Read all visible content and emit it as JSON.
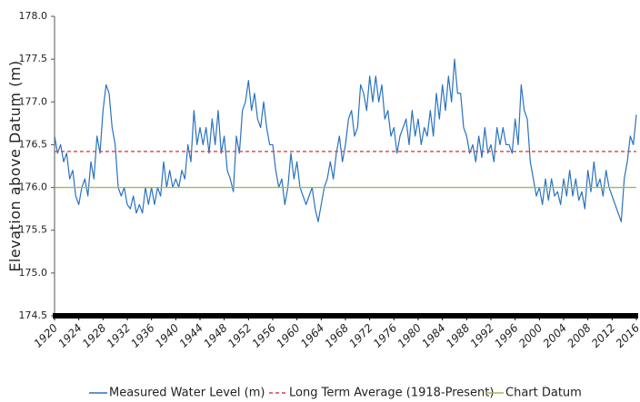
{
  "chart_data": {
    "type": "line",
    "y_label": "Elevation above Datum (m)",
    "xlim": [
      1920,
      2016
    ],
    "xticks": [
      1920,
      1924,
      1928,
      1932,
      1936,
      1940,
      1944,
      1948,
      1952,
      1956,
      1960,
      1964,
      1968,
      1972,
      1976,
      1980,
      1984,
      1988,
      1992,
      1996,
      2000,
      2004,
      2008,
      2012,
      2016
    ],
    "ylim": [
      174.5,
      178.0
    ],
    "yticks": [
      174.5,
      {
        "value": 175,
        "label": "175.0"
      },
      175.5,
      {
        "value": 176,
        "label": "176.0"
      },
      176.5,
      {
        "value": 177,
        "label": "177.0"
      },
      177.5,
      {
        "value": 178,
        "label": "178.0"
      }
    ],
    "grid": false,
    "legend": "bottom",
    "series": [
      {
        "name": "Measured Water Level (m)",
        "color": "#2a72bf",
        "style": "solid",
        "x": [
          1920,
          1920.5,
          1921,
          1921.5,
          1922,
          1922.5,
          1923,
          1923.5,
          1924,
          1924.5,
          1925,
          1925.5,
          1926,
          1926.5,
          1927,
          1927.5,
          1928,
          1928.5,
          1929,
          1929.5,
          1930,
          1930.5,
          1931,
          1931.5,
          1932,
          1932.5,
          1933,
          1933.5,
          1934,
          1934.5,
          1935,
          1935.5,
          1936,
          1936.5,
          1937,
          1937.5,
          1938,
          1938.5,
          1939,
          1939.5,
          1940,
          1940.5,
          1941,
          1941.5,
          1942,
          1942.5,
          1943,
          1943.5,
          1944,
          1944.5,
          1945,
          1945.5,
          1946,
          1946.5,
          1947,
          1947.5,
          1948,
          1948.5,
          1949,
          1949.5,
          1950,
          1950.5,
          1951,
          1951.5,
          1952,
          1952.5,
          1953,
          1953.5,
          1954,
          1954.5,
          1955,
          1955.5,
          1956,
          1956.5,
          1957,
          1957.5,
          1958,
          1958.5,
          1959,
          1959.5,
          1960,
          1960.5,
          1961,
          1961.5,
          1962,
          1962.5,
          1963,
          1963.5,
          1964,
          1964.5,
          1965,
          1965.5,
          1966,
          1966.5,
          1967,
          1967.5,
          1968,
          1968.5,
          1969,
          1969.5,
          1970,
          1970.5,
          1971,
          1971.5,
          1972,
          1972.5,
          1973,
          1973.5,
          1974,
          1974.5,
          1975,
          1975.5,
          1976,
          1976.5,
          1977,
          1977.5,
          1978,
          1978.5,
          1979,
          1979.5,
          1980,
          1980.5,
          1981,
          1981.5,
          1982,
          1982.5,
          1983,
          1983.5,
          1984,
          1984.5,
          1985,
          1985.5,
          1986,
          1986.5,
          1987,
          1987.5,
          1988,
          1988.5,
          1989,
          1989.5,
          1990,
          1990.5,
          1991,
          1991.5,
          1992,
          1992.5,
          1993,
          1993.5,
          1994,
          1994.5,
          1995,
          1995.5,
          1996,
          1996.5,
          1997,
          1997.5,
          1998,
          1998.5,
          1999,
          1999.5,
          2000,
          2000.5,
          2001,
          2001.5,
          2002,
          2002.5,
          2003,
          2003.5,
          2004,
          2004.5,
          2005,
          2005.5,
          2006,
          2006.5,
          2007,
          2007.5,
          2008,
          2008.5,
          2009,
          2009.5,
          2010,
          2010.5,
          2011,
          2011.5,
          2012,
          2012.5,
          2013,
          2013.5,
          2014,
          2014.5,
          2015,
          2015.5,
          2016
        ],
        "values": [
          176.6,
          176.4,
          176.5,
          176.3,
          176.4,
          176.1,
          176.2,
          175.9,
          175.8,
          176.0,
          176.1,
          175.9,
          176.3,
          176.1,
          176.6,
          176.4,
          176.9,
          177.2,
          177.1,
          176.7,
          176.5,
          176.0,
          175.9,
          176.0,
          175.8,
          175.75,
          175.9,
          175.7,
          175.8,
          175.7,
          176.0,
          175.8,
          176.0,
          175.8,
          176.0,
          175.9,
          176.3,
          176.0,
          176.2,
          176.0,
          176.1,
          176.0,
          176.2,
          176.1,
          176.5,
          176.3,
          176.9,
          176.5,
          176.7,
          176.5,
          176.7,
          176.4,
          176.8,
          176.5,
          176.9,
          176.4,
          176.6,
          176.2,
          176.1,
          175.95,
          176.6,
          176.4,
          176.9,
          177.0,
          177.25,
          176.9,
          177.1,
          176.8,
          176.7,
          177.0,
          176.7,
          176.5,
          176.5,
          176.2,
          176.0,
          176.1,
          175.8,
          176.0,
          176.4,
          176.1,
          176.3,
          176.0,
          175.9,
          175.8,
          175.9,
          176.0,
          175.75,
          175.6,
          175.8,
          176.0,
          176.1,
          176.3,
          176.1,
          176.4,
          176.6,
          176.3,
          176.5,
          176.8,
          176.9,
          176.6,
          176.7,
          177.2,
          177.1,
          176.9,
          177.3,
          177.0,
          177.3,
          177.0,
          177.2,
          176.8,
          176.9,
          176.6,
          176.7,
          176.4,
          176.6,
          176.7,
          176.8,
          176.5,
          176.9,
          176.6,
          176.8,
          176.5,
          176.7,
          176.6,
          176.9,
          176.6,
          177.1,
          176.8,
          177.2,
          176.9,
          177.3,
          177.0,
          177.5,
          177.1,
          177.1,
          176.7,
          176.6,
          176.4,
          176.5,
          176.3,
          176.6,
          176.35,
          176.7,
          176.4,
          176.5,
          176.3,
          176.7,
          176.5,
          176.7,
          176.5,
          176.5,
          176.4,
          176.8,
          176.5,
          177.2,
          176.9,
          176.8,
          176.3,
          176.1,
          175.9,
          176.0,
          175.8,
          176.1,
          175.85,
          176.1,
          175.9,
          175.95,
          175.8,
          176.1,
          175.9,
          176.2,
          175.9,
          176.1,
          175.85,
          175.95,
          175.75,
          176.2,
          175.95,
          176.3,
          176.0,
          176.1,
          175.9,
          176.2,
          176.0,
          175.9,
          175.8,
          175.7,
          175.6,
          176.1,
          176.3,
          176.6,
          176.5,
          176.85
        ]
      },
      {
        "name": "Long Term Average (1918-Present)",
        "color": "#d9443f",
        "style": "dashed",
        "x": [
          1920,
          2016
        ],
        "values": [
          176.42,
          176.42
        ]
      },
      {
        "name": "Chart Datum",
        "color": "#9bbb59",
        "style": "solid",
        "x": [
          1920,
          2016
        ],
        "values": [
          176.0,
          176.0
        ]
      }
    ]
  }
}
